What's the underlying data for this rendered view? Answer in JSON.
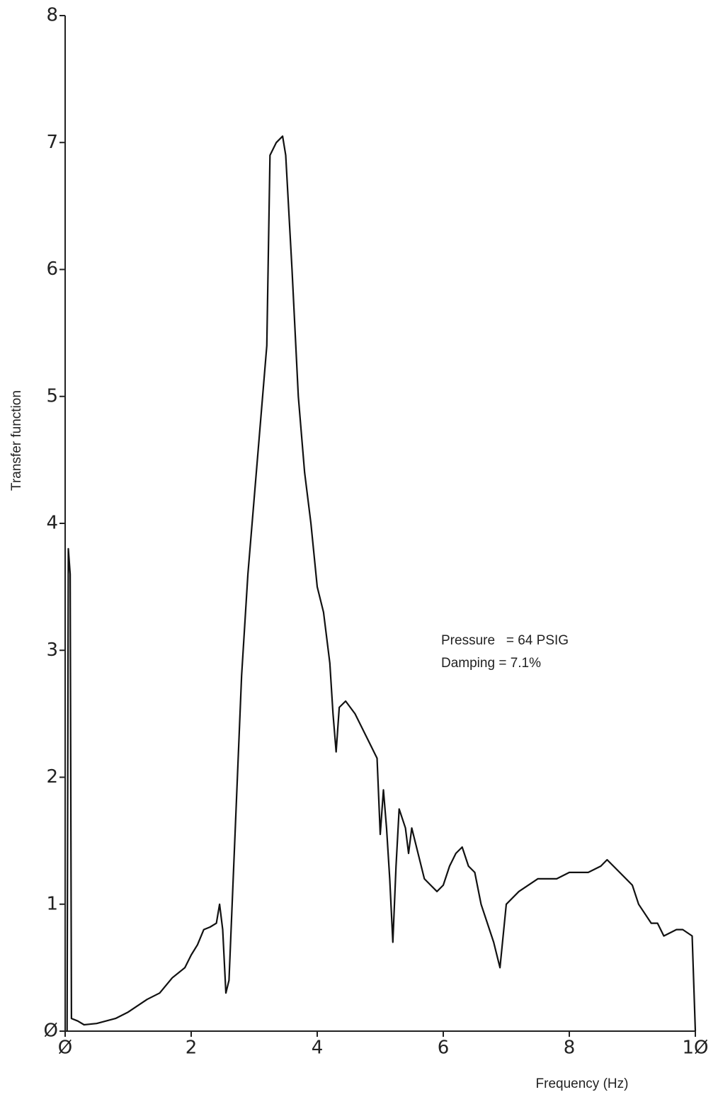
{
  "chart_data": {
    "type": "line",
    "xlabel": "Frequency (Hz)",
    "ylabel": "Transfer function",
    "annotations": [
      "Pressure   = 64 PSIG",
      "Damping = 7.1%"
    ],
    "xlim": [
      0,
      10
    ],
    "ylim": [
      0,
      8
    ],
    "xticks": [
      {
        "value": 0,
        "label": "Ø"
      },
      2,
      4,
      6,
      8,
      {
        "value": 10,
        "label": "1Ø"
      }
    ],
    "yticks": [
      {
        "value": 0,
        "label": "Ø"
      },
      1,
      2,
      3,
      4,
      5,
      6,
      7,
      8
    ],
    "color": "#111",
    "x": [
      0.03,
      0.05,
      0.08,
      0.1,
      0.2,
      0.3,
      0.5,
      0.8,
      1.0,
      1.3,
      1.5,
      1.7,
      1.9,
      2.0,
      2.1,
      2.2,
      2.3,
      2.4,
      2.45,
      2.5,
      2.55,
      2.6,
      2.7,
      2.8,
      2.9,
      3.0,
      3.1,
      3.2,
      3.25,
      3.35,
      3.45,
      3.5,
      3.6,
      3.7,
      3.8,
      3.9,
      4.0,
      4.1,
      4.2,
      4.25,
      4.3,
      4.35,
      4.45,
      4.6,
      4.8,
      4.95,
      5.0,
      5.05,
      5.1,
      5.15,
      5.2,
      5.25,
      5.3,
      5.4,
      5.45,
      5.5,
      5.6,
      5.7,
      5.8,
      5.9,
      6.0,
      6.1,
      6.2,
      6.3,
      6.4,
      6.5,
      6.6,
      6.7,
      6.8,
      6.9,
      7.0,
      7.2,
      7.5,
      7.8,
      8.0,
      8.3,
      8.5,
      8.6,
      8.8,
      9.0,
      9.1,
      9.3,
      9.4,
      9.5,
      9.7,
      9.8,
      9.95,
      10.0
    ],
    "values": [
      0.0,
      3.8,
      3.6,
      0.1,
      0.08,
      0.05,
      0.06,
      0.1,
      0.15,
      0.25,
      0.3,
      0.42,
      0.5,
      0.6,
      0.68,
      0.8,
      0.82,
      0.85,
      1.0,
      0.8,
      0.3,
      0.4,
      1.6,
      2.8,
      3.6,
      4.2,
      4.8,
      5.4,
      6.9,
      7.0,
      7.05,
      6.9,
      6.0,
      5.0,
      4.4,
      4.0,
      3.5,
      3.3,
      2.9,
      2.5,
      2.2,
      2.55,
      2.6,
      2.5,
      2.3,
      2.15,
      1.55,
      1.9,
      1.6,
      1.2,
      0.7,
      1.3,
      1.75,
      1.6,
      1.4,
      1.6,
      1.4,
      1.2,
      1.15,
      1.1,
      1.15,
      1.3,
      1.4,
      1.45,
      1.3,
      1.25,
      1.0,
      0.85,
      0.7,
      0.5,
      1.0,
      1.1,
      1.2,
      1.2,
      1.25,
      1.25,
      1.3,
      1.35,
      1.25,
      1.15,
      1.0,
      0.85,
      0.85,
      0.75,
      0.8,
      0.8,
      0.75,
      0.0
    ]
  }
}
